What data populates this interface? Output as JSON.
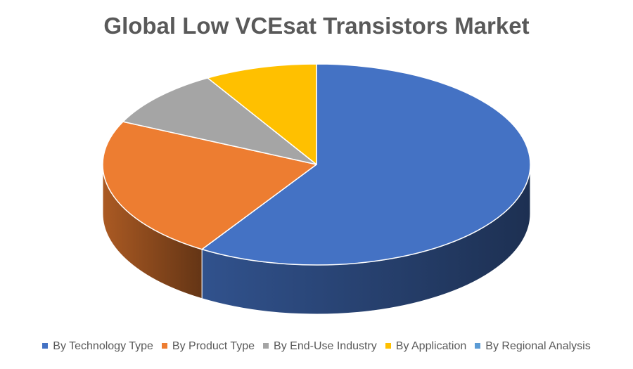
{
  "chart_data": {
    "type": "pie",
    "title": "Global Low VCEsat Transistors Market",
    "categories": [
      "By Technology Type",
      "By Product Type",
      "By End-Use Industry",
      "By Application",
      "By Regional Analysis"
    ],
    "values": [
      59,
      23,
      9.5,
      8.5,
      0
    ],
    "colors": [
      "#4472C4",
      "#ED7D31",
      "#A5A5A5",
      "#FFC000",
      "#5B9BD5"
    ],
    "style": "3d",
    "legend": "bottom"
  }
}
